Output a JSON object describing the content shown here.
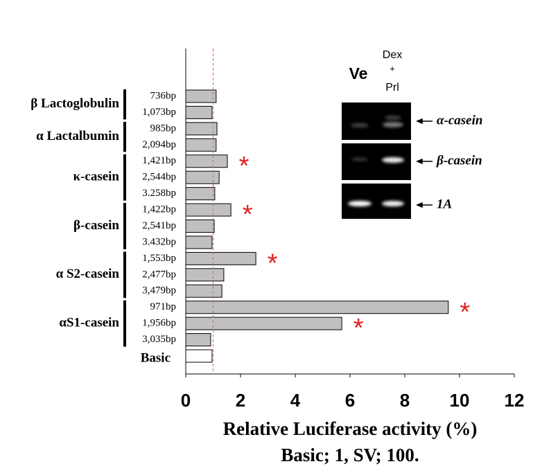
{
  "chart_data": {
    "type": "bar",
    "orientation": "horizontal",
    "xlabel": "Relative Luciferase activity (%)",
    "subtitle": "Basic; 1, SV; 100.",
    "xlim": [
      0,
      12
    ],
    "xticks": [
      0,
      2,
      4,
      6,
      8,
      10,
      12
    ],
    "reference_line": 1,
    "reference_color": "#e8643c",
    "star": "*",
    "star_color": "#e02020",
    "groups": [
      {
        "name": "β Lactoglobulin",
        "categories": [
          "736bp",
          "1,073bp"
        ],
        "values": [
          1.11,
          0.96
        ],
        "significant": [
          false,
          false
        ],
        "color": "#c0c0c0"
      },
      {
        "name": "α Lactalbumin",
        "categories": [
          "985bp",
          "2,094bp"
        ],
        "values": [
          1.14,
          1.11
        ],
        "significant": [
          false,
          false
        ],
        "color": "#c0c0c0"
      },
      {
        "name": "κ-casein",
        "categories": [
          "1,421bp",
          "2,544bp",
          "3.258bp"
        ],
        "values": [
          1.52,
          1.22,
          1.06
        ],
        "significant": [
          true,
          false,
          false
        ],
        "color": "#c0c0c0"
      },
      {
        "name": "β-casein",
        "categories": [
          "1,422bp",
          "2,541bp",
          "3.432bp"
        ],
        "values": [
          1.65,
          1.04,
          0.96
        ],
        "significant": [
          true,
          false,
          false
        ],
        "color": "#c0c0c0"
      },
      {
        "name": "α S2-casein",
        "categories": [
          "1,553bp",
          "2,477bp",
          "3,479bp"
        ],
        "values": [
          2.56,
          1.39,
          1.32
        ],
        "significant": [
          true,
          false,
          false
        ],
        "color": "#c0c0c0"
      },
      {
        "name": "αS1-casein",
        "categories": [
          "971bp",
          "1,956bp",
          "3,035bp"
        ],
        "values": [
          9.59,
          5.7,
          0.91
        ],
        "significant": [
          true,
          true,
          false
        ],
        "color": "#c0c0c0"
      },
      {
        "categories": [
          "Basic"
        ],
        "values": [
          0.96
        ],
        "significant": [
          false
        ],
        "color": "#ffffff"
      }
    ]
  },
  "inset": {
    "lanes": [
      "Ve",
      "Dex",
      "+",
      "Prl"
    ],
    "bands": [
      "α-casein",
      "β-casein",
      "1A"
    ]
  }
}
